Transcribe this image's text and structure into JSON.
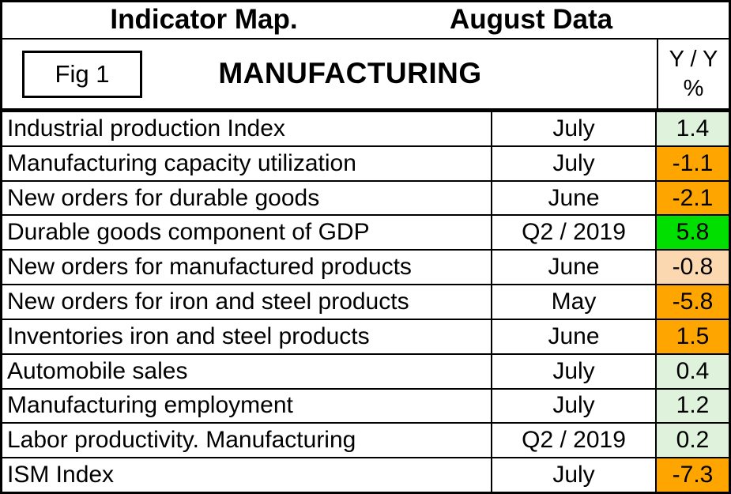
{
  "chart_data": {
    "type": "table",
    "title": "Indicator Map.",
    "subtitle": "August Data",
    "figure_label": "Fig 1",
    "section": "MANUFACTURING",
    "value_header_line1": "Y / Y",
    "value_header_line2": "%",
    "cell_colors": {
      "green": "#00DF00",
      "light_green": "#DEF2DC",
      "light_orange": "#FBD8B0",
      "orange": "#FFA500"
    },
    "rows": [
      {
        "indicator": "Industrial production Index",
        "period": "July",
        "value": 1.4,
        "tone": "light_green"
      },
      {
        "indicator": "Manufacturing capacity utilization",
        "period": "July",
        "value": -1.1,
        "tone": "orange"
      },
      {
        "indicator": "New orders for durable goods",
        "period": "June",
        "value": -2.1,
        "tone": "orange"
      },
      {
        "indicator": "Durable goods component of GDP",
        "period": "Q2 / 2019",
        "value": 5.8,
        "tone": "green"
      },
      {
        "indicator": "New orders for manufactured products",
        "period": "June",
        "value": -0.8,
        "tone": "light_orange"
      },
      {
        "indicator": "New orders for iron and steel products",
        "period": "May",
        "value": -5.8,
        "tone": "orange"
      },
      {
        "indicator": "Inventories iron and steel products",
        "period": "June",
        "value": 1.5,
        "tone": "orange"
      },
      {
        "indicator": "Automobile sales",
        "period": "July",
        "value": 0.4,
        "tone": "light_green"
      },
      {
        "indicator": "Manufacturing employment",
        "period": "July",
        "value": 1.2,
        "tone": "light_green"
      },
      {
        "indicator": "Labor productivity. Manufacturing",
        "period": "Q2 / 2019",
        "value": 0.2,
        "tone": "light_green"
      },
      {
        "indicator": "ISM Index",
        "period": "July",
        "value": -7.3,
        "tone": "orange"
      }
    ]
  }
}
